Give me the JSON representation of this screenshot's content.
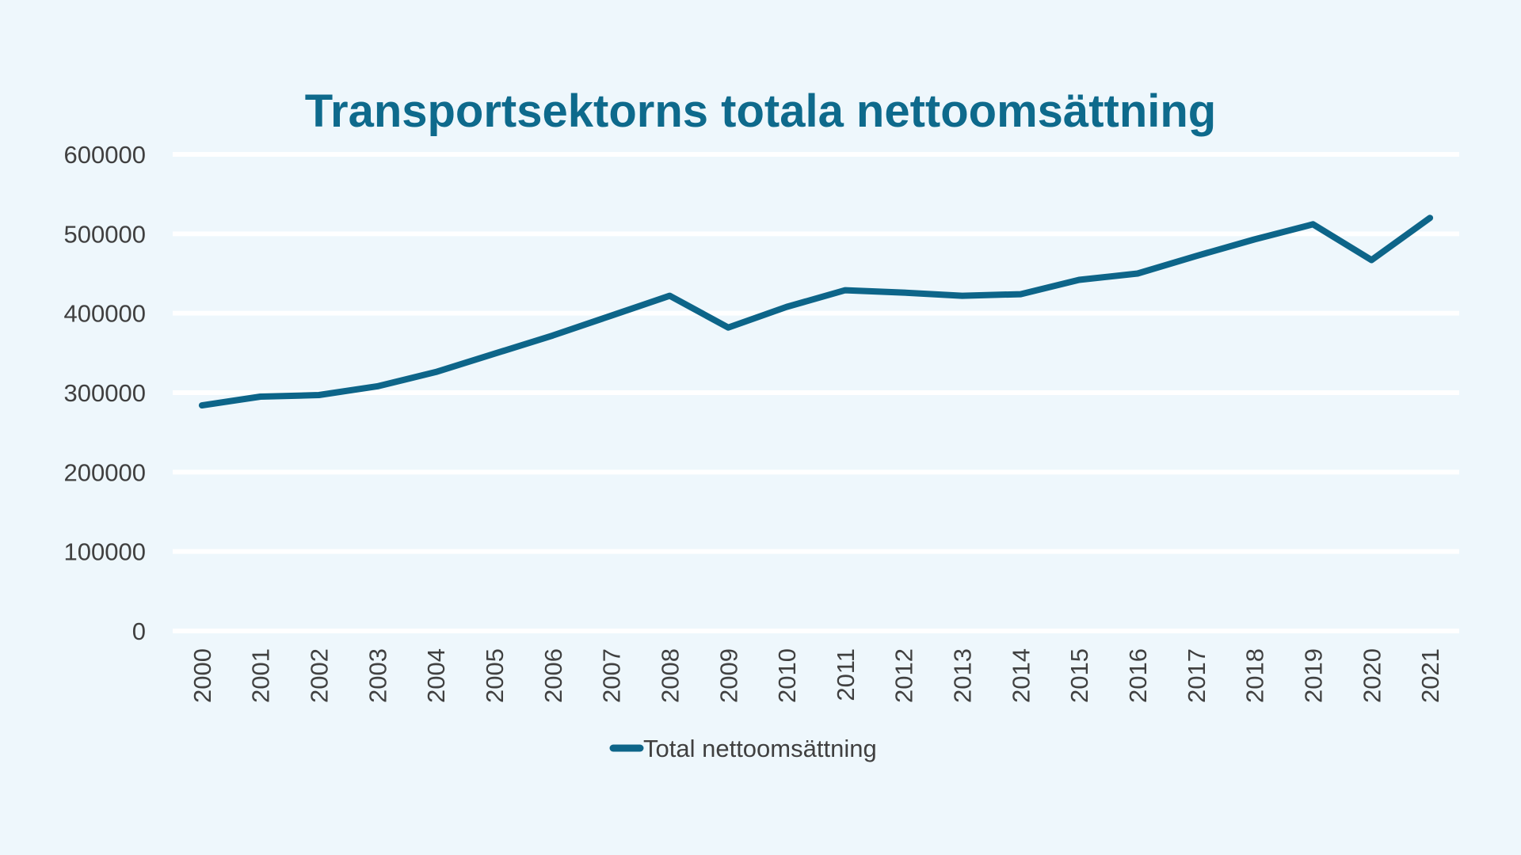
{
  "chart_data": {
    "type": "line",
    "title": "Transportsektorns totala nettoomsättning",
    "xlabel": "",
    "ylabel": "",
    "categories": [
      "2000",
      "2001",
      "2002",
      "2003",
      "2004",
      "2005",
      "2006",
      "2007",
      "2008",
      "2009",
      "2010",
      "2011",
      "2012",
      "2013",
      "2014",
      "2015",
      "2016",
      "2017",
      "2018",
      "2019",
      "2020",
      "2021"
    ],
    "series": [
      {
        "name": "Total nettoomsättning",
        "values": [
          284000,
          295000,
          297000,
          308000,
          326000,
          349000,
          372000,
          397000,
          422000,
          382000,
          408000,
          429000,
          426000,
          422000,
          424000,
          442000,
          450000,
          472000,
          493000,
          512000,
          467000,
          520000
        ]
      }
    ],
    "ylim": [
      0,
      600000
    ],
    "yticks": [
      "0",
      "100000",
      "200000",
      "300000",
      "400000",
      "500000",
      "600000"
    ],
    "grid": true,
    "legend_position": "bottom"
  },
  "colors": {
    "background": "#EEF7FC",
    "title": "#0E6A8C",
    "series": "#0D6589",
    "gridline": "#FFFFFF",
    "tick_text": "#404040"
  }
}
